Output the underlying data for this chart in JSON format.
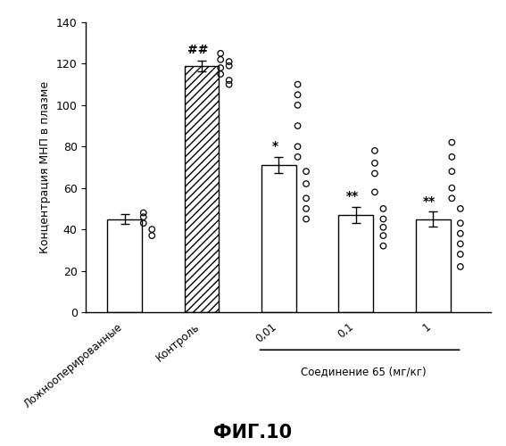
{
  "categories": [
    "Ложнооперированные",
    "Контроль",
    "0,01",
    "0,1",
    "1"
  ],
  "bar_heights": [
    45,
    119,
    71,
    47,
    45
  ],
  "bar_errors": [
    2.5,
    2.5,
    4,
    4,
    3.5
  ],
  "bar_colors": [
    "white",
    "white",
    "white",
    "white",
    "white"
  ],
  "bar_hatches": [
    null,
    "////",
    null,
    null,
    null
  ],
  "bar_edgecolors": [
    "black",
    "black",
    "black",
    "black",
    "black"
  ],
  "annotations": [
    null,
    "##",
    "*",
    "**",
    "**"
  ],
  "scatter_groups": [
    {
      "y": [
        43,
        46,
        48,
        40,
        37
      ],
      "col": [
        0,
        0,
        0,
        1,
        1
      ]
    },
    {
      "y": [
        125,
        122,
        118,
        115,
        112,
        110,
        119,
        121
      ],
      "col": [
        0,
        0,
        0,
        0,
        1,
        1,
        1,
        1
      ]
    },
    {
      "y": [
        110,
        105,
        100,
        90,
        80,
        75,
        68,
        62,
        55,
        50,
        45
      ],
      "col": [
        0,
        0,
        0,
        0,
        0,
        0,
        1,
        1,
        1,
        1,
        1
      ]
    },
    {
      "y": [
        78,
        72,
        67,
        58,
        50,
        45,
        41,
        37,
        32
      ],
      "col": [
        0,
        0,
        0,
        0,
        1,
        1,
        1,
        1,
        1
      ]
    },
    {
      "y": [
        82,
        75,
        68,
        60,
        55,
        50,
        43,
        38,
        33,
        28,
        22
      ],
      "col": [
        0,
        0,
        0,
        0,
        0,
        1,
        1,
        1,
        1,
        1,
        1
      ]
    }
  ],
  "ylim": [
    0,
    140
  ],
  "yticks": [
    0,
    20,
    40,
    60,
    80,
    100,
    120,
    140
  ],
  "ylabel": "Концентрация МНП в плазме",
  "group_label": "Соединение 65 (мг/кг)",
  "figure_title": "ФИГ.10",
  "background_color": "white",
  "bar_width": 0.45
}
